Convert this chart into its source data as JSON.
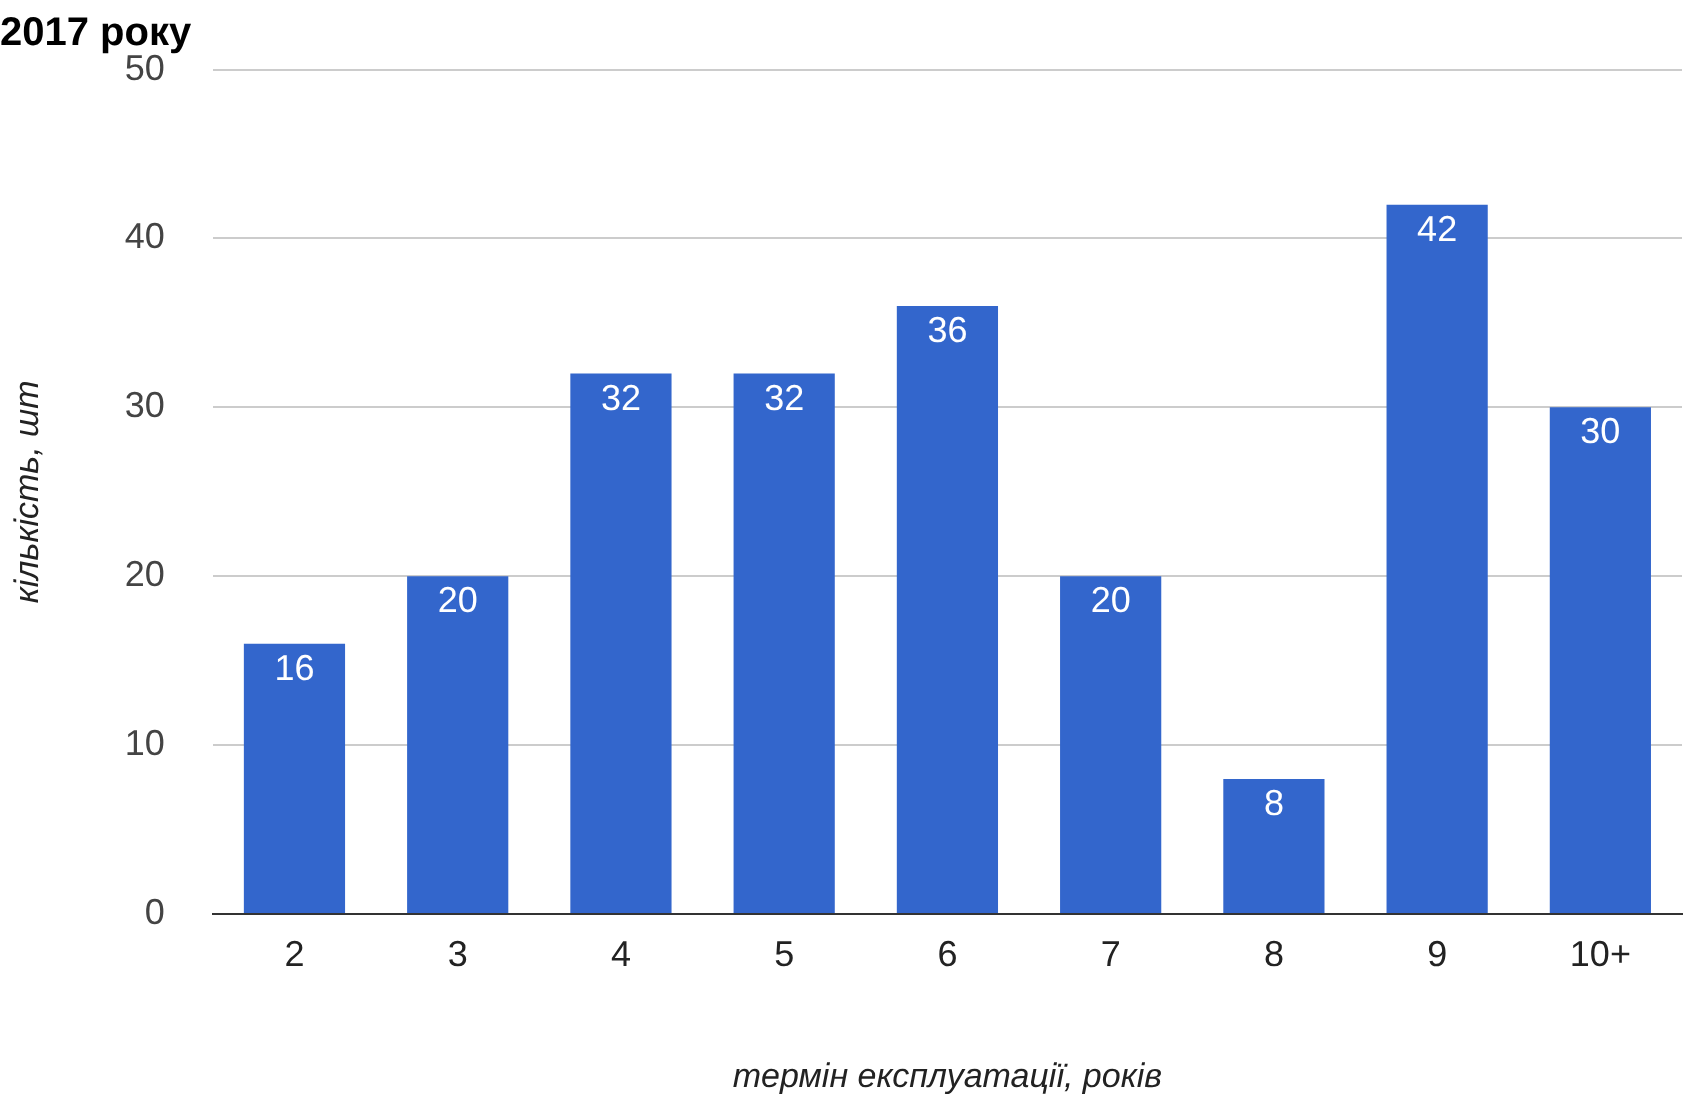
{
  "chart_data": {
    "type": "bar",
    "title": "2017 року",
    "xlabel": "термін експлуатації, років",
    "ylabel": "кількість, шт",
    "categories": [
      "2",
      "3",
      "4",
      "5",
      "6",
      "7",
      "8",
      "9",
      "10+"
    ],
    "values": [
      16,
      20,
      32,
      32,
      36,
      20,
      8,
      42,
      30
    ],
    "color": "#3366cc",
    "ylim": [
      0,
      50
    ],
    "yticks": [
      0,
      10,
      20,
      30,
      40,
      50
    ],
    "grid": "y",
    "data_labels": true,
    "legend": false
  }
}
